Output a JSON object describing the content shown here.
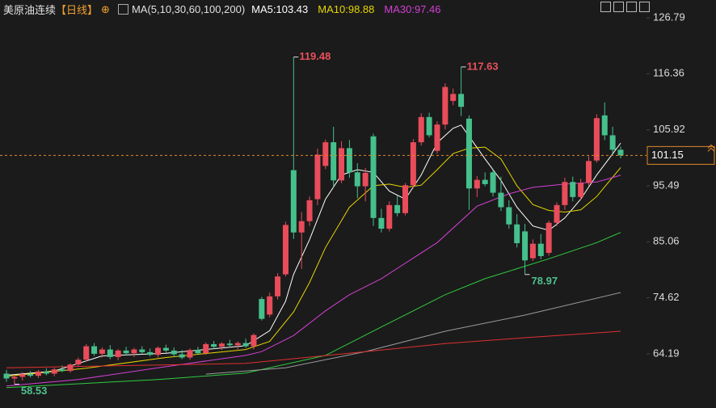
{
  "chart_data": {
    "type": "candlestick",
    "title": "美原油连续",
    "period": "【日线】",
    "indicator": "MA(5,10,30,60,100,200)",
    "ylim": [
      54.1,
      130.1
    ],
    "yticks": [
      126.79,
      116.36,
      105.92,
      95.49,
      85.06,
      74.62,
      64.19
    ],
    "up_color": "#e94c5a",
    "down_color": "#45c08c",
    "ohlc": [
      [
        60.5,
        61.2,
        59.0,
        59.6
      ],
      [
        59.6,
        60.3,
        58.53,
        59.9
      ],
      [
        59.9,
        60.8,
        59.2,
        60.4
      ],
      [
        60.4,
        61.0,
        59.8,
        60.1
      ],
      [
        60.1,
        61.2,
        59.7,
        60.9
      ],
      [
        60.9,
        61.5,
        60.2,
        60.5
      ],
      [
        60.5,
        61.6,
        60.0,
        61.3
      ],
      [
        61.3,
        62.0,
        60.8,
        61.0
      ],
      [
        61.0,
        62.4,
        60.7,
        62.2
      ],
      [
        62.2,
        63.5,
        61.8,
        63.1
      ],
      [
        63.1,
        66.0,
        62.8,
        65.6
      ],
      [
        65.6,
        66.2,
        63.8,
        64.2
      ],
      [
        64.2,
        65.4,
        63.5,
        65.0
      ],
      [
        65.0,
        65.8,
        63.2,
        63.6
      ],
      [
        63.6,
        65.1,
        63.0,
        64.8
      ],
      [
        64.8,
        65.5,
        63.9,
        64.3
      ],
      [
        64.3,
        65.3,
        63.6,
        65.0
      ],
      [
        65.0,
        65.6,
        64.1,
        64.5
      ],
      [
        64.5,
        65.2,
        63.7,
        64.0
      ],
      [
        64.0,
        65.6,
        63.5,
        65.3
      ],
      [
        65.3,
        65.9,
        64.4,
        64.8
      ],
      [
        64.8,
        65.4,
        63.6,
        64.1
      ],
      [
        64.1,
        64.9,
        63.2,
        63.5
      ],
      [
        63.5,
        65.2,
        63.1,
        64.9
      ],
      [
        64.9,
        65.5,
        64.0,
        64.3
      ],
      [
        64.3,
        66.3,
        64.0,
        66.0
      ],
      [
        66.0,
        66.6,
        65.1,
        65.5
      ],
      [
        65.5,
        66.4,
        64.9,
        66.1
      ],
      [
        66.1,
        66.8,
        65.4,
        65.8
      ],
      [
        65.8,
        66.5,
        65.0,
        66.2
      ],
      [
        66.2,
        67.0,
        65.3,
        65.6
      ],
      [
        65.6,
        68.0,
        65.0,
        67.7
      ],
      [
        74.4,
        74.8,
        70.4,
        70.7
      ],
      [
        71.5,
        75.6,
        71.0,
        74.9
      ],
      [
        74.9,
        79.2,
        74.3,
        78.6
      ],
      [
        79.0,
        88.8,
        78.6,
        88.2
      ],
      [
        98.4,
        119.48,
        85.6,
        86.8
      ],
      [
        86.8,
        90.6,
        80.0,
        88.9
      ],
      [
        88.9,
        93.5,
        88.0,
        92.8
      ],
      [
        93.0,
        102.4,
        91.9,
        101.3
      ],
      [
        99.2,
        104.1,
        98.6,
        103.6
      ],
      [
        103.6,
        106.5,
        95.2,
        96.5
      ],
      [
        96.5,
        103.8,
        96.0,
        102.5
      ],
      [
        102.5,
        104.0,
        97.0,
        98.0
      ],
      [
        98.0,
        99.7,
        93.2,
        95.4
      ],
      [
        95.4,
        98.8,
        92.6,
        97.9
      ],
      [
        104.7,
        105.2,
        88.0,
        89.5
      ],
      [
        89.5,
        91.2,
        86.8,
        87.5
      ],
      [
        87.5,
        92.6,
        87.0,
        91.9
      ],
      [
        91.9,
        93.7,
        89.8,
        90.4
      ],
      [
        90.4,
        96.0,
        90.0,
        95.6
      ],
      [
        95.6,
        104.2,
        95.0,
        103.6
      ],
      [
        103.6,
        109.0,
        103.0,
        108.3
      ],
      [
        108.3,
        109.1,
        104.5,
        104.9
      ],
      [
        102.0,
        107.5,
        101.5,
        106.9
      ],
      [
        106.9,
        114.6,
        106.0,
        113.9
      ],
      [
        111.3,
        113.6,
        110.5,
        112.6
      ],
      [
        112.6,
        117.63,
        108.5,
        110.2
      ],
      [
        108.0,
        108.6,
        91.0,
        95.0
      ],
      [
        95.0,
        97.3,
        93.4,
        96.6
      ],
      [
        96.6,
        98.0,
        95.4,
        95.8
      ],
      [
        98.0,
        98.5,
        93.5,
        94.2
      ],
      [
        94.2,
        97.2,
        90.8,
        91.5
      ],
      [
        91.5,
        92.8,
        87.5,
        88.3
      ],
      [
        88.3,
        90.2,
        84.0,
        84.8
      ],
      [
        87.0,
        88.4,
        78.97,
        81.6
      ],
      [
        82.0,
        85.5,
        81.5,
        84.7
      ],
      [
        84.7,
        86.5,
        81.8,
        82.4
      ],
      [
        83.0,
        89.0,
        82.5,
        88.6
      ],
      [
        88.6,
        92.4,
        88.0,
        91.9
      ],
      [
        91.9,
        97.0,
        91.0,
        96.2
      ],
      [
        96.2,
        97.2,
        92.6,
        93.4
      ],
      [
        93.4,
        96.8,
        92.8,
        96.0
      ],
      [
        96.0,
        101.0,
        95.5,
        100.1
      ],
      [
        100.2,
        108.8,
        99.8,
        108.1
      ],
      [
        108.6,
        111.0,
        104.0,
        104.9
      ],
      [
        104.9,
        106.5,
        101.5,
        102.2
      ],
      [
        102.2,
        102.8,
        100.6,
        101.15
      ]
    ],
    "series": [
      {
        "name": "MA5:103.43",
        "color": "#ffffff",
        "x": [
          0,
          6,
          12,
          20,
          30,
          33,
          35,
          36,
          38,
          40,
          42,
          44,
          46,
          48,
          50,
          52,
          54,
          56,
          57,
          60,
          62,
          64,
          66,
          68,
          70,
          72,
          74,
          77
        ],
        "values": [
          60.2,
          61.0,
          63.8,
          64.3,
          65.7,
          68.5,
          74,
          79,
          85.5,
          93,
          97.5,
          98.5,
          98,
          94.5,
          93.0,
          97.5,
          103.5,
          106.2,
          106.8,
          100.5,
          96.5,
          91.5,
          88.0,
          87.2,
          89.5,
          93.0,
          97.5,
          103.43
        ]
      },
      {
        "name": "MA10:98.88",
        "color": "#e6d500",
        "x": [
          0,
          10,
          20,
          30,
          33,
          36,
          38,
          40,
          43,
          46,
          48,
          50,
          52,
          54,
          56,
          58,
          60,
          62,
          64,
          66,
          68,
          70,
          72,
          74,
          77
        ],
        "values": [
          60.0,
          61.5,
          63.5,
          65.0,
          66.5,
          72,
          77.5,
          84,
          91.5,
          95.5,
          95.8,
          95.2,
          95.6,
          98.5,
          101.5,
          102.5,
          102.7,
          100.5,
          95.5,
          92.0,
          90.9,
          90.6,
          91.0,
          93.5,
          98.88
        ]
      },
      {
        "name": "MA30:97.46",
        "color": "#d43fd4",
        "x": [
          0,
          9,
          19,
          30,
          32,
          36,
          40,
          43,
          47,
          54,
          59,
          63,
          66,
          70,
          74,
          77
        ],
        "values": [
          58.2,
          59.4,
          61.6,
          63.9,
          64.6,
          67.6,
          72.2,
          75.2,
          78.2,
          84.9,
          91.7,
          94.0,
          95.2,
          95.8,
          96.2,
          97.46
        ]
      },
      {
        "color": "#2ecc40",
        "x": [
          0,
          19,
          30,
          40,
          47,
          55,
          60,
          68,
          74,
          77
        ],
        "values": [
          57.9,
          59.4,
          60.6,
          63.9,
          69.2,
          75.2,
          78.2,
          81.9,
          84.9,
          86.8
        ]
      },
      {
        "color": "#9a9a9a",
        "x": [
          25,
          35,
          45,
          55,
          65,
          77
        ],
        "values": [
          60.4,
          61.6,
          64.6,
          68.4,
          71.4,
          75.6
        ]
      },
      {
        "color": "#e03030",
        "x": [
          0,
          30,
          45,
          55,
          65,
          77
        ],
        "values": [
          61.6,
          62.4,
          64.6,
          66.1,
          67.2,
          68.4
        ]
      }
    ]
  }
}
